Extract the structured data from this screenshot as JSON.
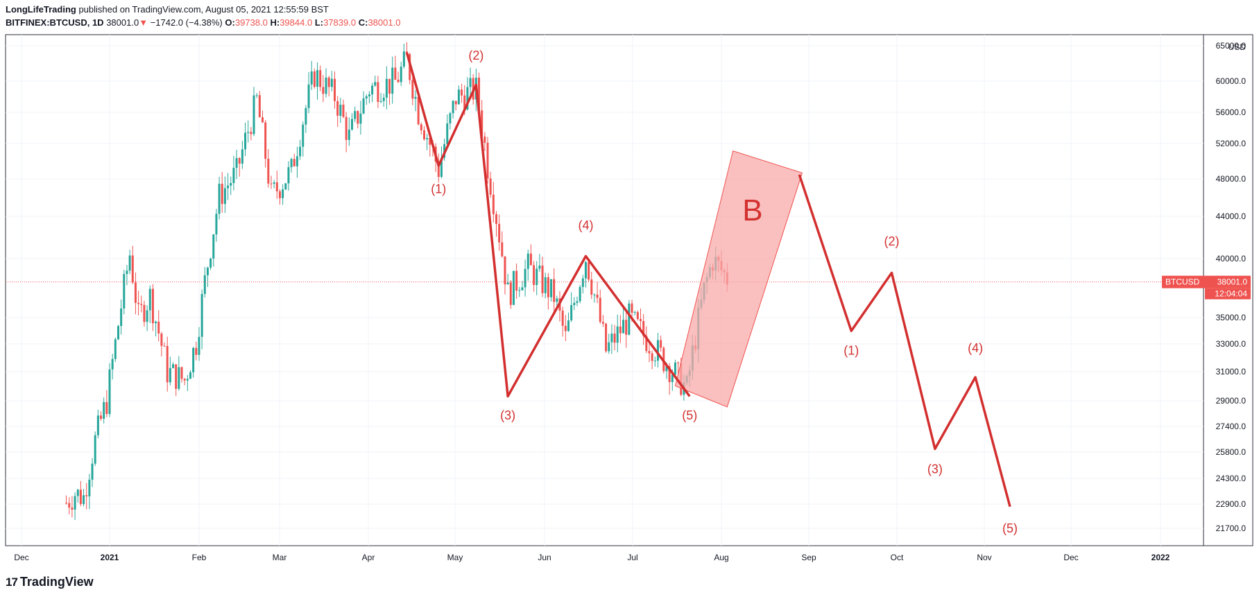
{
  "header": {
    "author": "LongLifeTrading",
    "published": "published on TradingView.com, August 05, 2021 12:55:59 BST",
    "symbol": "BITFINEX:BTCUSD, 1D",
    "last": "38001.0",
    "change": "−1742.0 (−4.38%)",
    "o_label": "O:",
    "o_value": "39738.0",
    "h_label": "H:",
    "h_value": "39844.0",
    "l_label": "L:",
    "l_value": "37839.0",
    "c_label": "C:",
    "c_value": "38001.0"
  },
  "footer": {
    "brand": "TradingView"
  },
  "colors": {
    "up": "#26a69a",
    "down": "#ef5350",
    "wave": "#d32f2f",
    "channel_fill": "#f8a9a9",
    "grid": "#f0f3fa"
  },
  "chart_data": {
    "type": "candlestick",
    "title": "",
    "currency": "USD",
    "price_label": {
      "symbol": "BTCUSD",
      "value": "38001.0",
      "countdown": "12:04:04"
    },
    "x_ticks": [
      "Dec",
      "2021",
      "Feb",
      "Mar",
      "Apr",
      "May",
      "Jun",
      "Jul",
      "Aug",
      "Sep",
      "Oct",
      "Nov",
      "Dec",
      "2022"
    ],
    "y_ticks": [
      "65000.0",
      "60000.0",
      "56000.0",
      "52000.0",
      "48000.0",
      "44000.0",
      "40000.0",
      "35000.0",
      "33000.0",
      "31000.0",
      "29000.0",
      "27400.0",
      "25800.0",
      "24300.0",
      "22900.0",
      "21700.0"
    ],
    "y_scale": "log",
    "last_price": 38001.0,
    "candles_approx_close": [
      {
        "date": "2020-12-17",
        "close": 23000
      },
      {
        "date": "2020-12-20",
        "close": 23500
      },
      {
        "date": "2020-12-23",
        "close": 23300
      },
      {
        "date": "2020-12-27",
        "close": 26500
      },
      {
        "date": "2020-12-31",
        "close": 29000
      },
      {
        "date": "2021-01-03",
        "close": 33000
      },
      {
        "date": "2021-01-08",
        "close": 40500
      },
      {
        "date": "2021-01-11",
        "close": 35000
      },
      {
        "date": "2021-01-15",
        "close": 36800
      },
      {
        "date": "2021-01-21",
        "close": 31000
      },
      {
        "date": "2021-01-27",
        "close": 30400
      },
      {
        "date": "2021-01-31",
        "close": 33100
      },
      {
        "date": "2021-02-08",
        "close": 46200
      },
      {
        "date": "2021-02-14",
        "close": 48700
      },
      {
        "date": "2021-02-21",
        "close": 57400
      },
      {
        "date": "2021-02-26",
        "close": 46200
      },
      {
        "date": "2021-03-05",
        "close": 48900
      },
      {
        "date": "2021-03-13",
        "close": 61000
      },
      {
        "date": "2021-03-20",
        "close": 58000
      },
      {
        "date": "2021-03-25",
        "close": 52800
      },
      {
        "date": "2021-04-01",
        "close": 59000
      },
      {
        "date": "2021-04-10",
        "close": 59900
      },
      {
        "date": "2021-04-14",
        "close": 63000
      },
      {
        "date": "2021-04-18",
        "close": 56000
      },
      {
        "date": "2021-04-25",
        "close": 49100
      },
      {
        "date": "2021-05-01",
        "close": 57800
      },
      {
        "date": "2021-05-08",
        "close": 58800
      },
      {
        "date": "2021-05-12",
        "close": 49500
      },
      {
        "date": "2021-05-19",
        "close": 37000
      },
      {
        "date": "2021-05-26",
        "close": 39300
      },
      {
        "date": "2021-06-04",
        "close": 36800
      },
      {
        "date": "2021-06-08",
        "close": 33400
      },
      {
        "date": "2021-06-15",
        "close": 40200
      },
      {
        "date": "2021-06-22",
        "close": 32500
      },
      {
        "date": "2021-06-30",
        "close": 35000
      },
      {
        "date": "2021-07-08",
        "close": 32900
      },
      {
        "date": "2021-07-20",
        "close": 29800
      },
      {
        "date": "2021-07-26",
        "close": 37300
      },
      {
        "date": "2021-07-29",
        "close": 40000
      },
      {
        "date": "2021-08-04",
        "close": 38001
      }
    ],
    "wave_paths": [
      {
        "name": "historical-abc",
        "points": [
          {
            "date": "2021-04-14",
            "price": 64000
          },
          {
            "date": "2021-04-25",
            "price": 49500
          },
          {
            "date": "2021-05-08",
            "price": 59500
          },
          {
            "date": "2021-05-19",
            "price": 29300
          },
          {
            "date": "2021-06-15",
            "price": 40300
          },
          {
            "date": "2021-07-21",
            "price": 29300
          }
        ]
      },
      {
        "name": "projection",
        "points": [
          {
            "date": "2021-08-28",
            "price": 48500
          },
          {
            "date": "2021-09-15",
            "price": 34000
          },
          {
            "date": "2021-09-29",
            "price": 38800
          },
          {
            "date": "2021-10-14",
            "price": 26000
          },
          {
            "date": "2021-10-28",
            "price": 30600
          },
          {
            "date": "2021-11-09",
            "price": 22800
          }
        ]
      }
    ],
    "wave_labels": [
      {
        "text": "(1)",
        "date": "2021-04-25",
        "price": 46500
      },
      {
        "text": "(2)",
        "date": "2021-05-08",
        "price": 63000
      },
      {
        "text": "(3)",
        "date": "2021-05-19",
        "price": 27800
      },
      {
        "text": "(4)",
        "date": "2021-06-15",
        "price": 42800
      },
      {
        "text": "(5)",
        "date": "2021-07-21",
        "price": 27800
      },
      {
        "text": "(1)",
        "date": "2021-09-15",
        "price": 32200
      },
      {
        "text": "(2)",
        "date": "2021-09-29",
        "price": 41300
      },
      {
        "text": "(3)",
        "date": "2021-10-14",
        "price": 24600
      },
      {
        "text": "(4)",
        "date": "2021-10-28",
        "price": 32400
      },
      {
        "text": "(5)",
        "date": "2021-11-09",
        "price": 21500
      }
    ],
    "channel": {
      "label": "B",
      "corners": [
        {
          "date": "2021-07-16",
          "price": 30000
        },
        {
          "date": "2021-08-05",
          "price": 51200
        },
        {
          "date": "2021-08-29",
          "price": 48700
        },
        {
          "date": "2021-08-03",
          "price": 28600
        }
      ]
    }
  }
}
